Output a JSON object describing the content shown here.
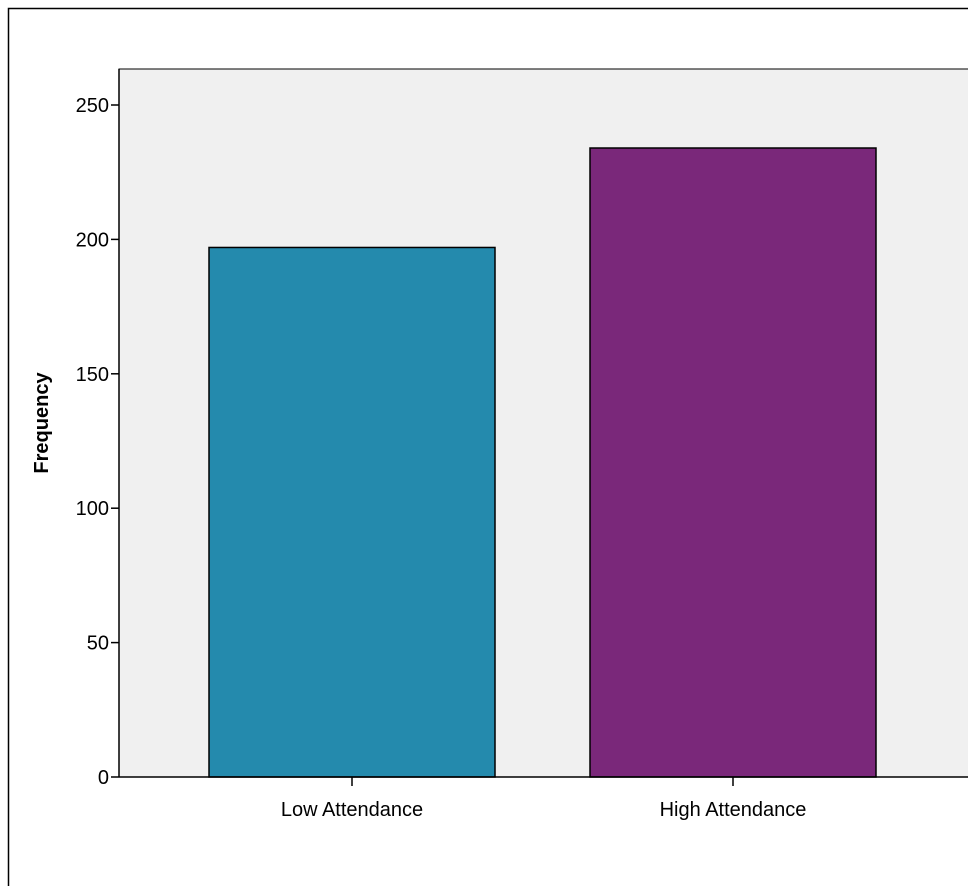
{
  "chart_data": {
    "type": "bar",
    "title": "",
    "xlabel": "",
    "ylabel": "Frequency",
    "categories": [
      "Low Attendance",
      "High Attendance"
    ],
    "values": [
      197,
      234
    ],
    "ylim": [
      0,
      264
    ],
    "yticks": [
      0,
      50,
      100,
      150,
      200,
      250
    ],
    "ytick_labels": [
      "0",
      "50",
      "100",
      "150",
      "200",
      "250"
    ],
    "grid": false,
    "legend": "none",
    "bar_colors": [
      "#248aad",
      "#7a287a"
    ],
    "plot_background": "#f0f0f0",
    "axis_color": "#000000"
  }
}
